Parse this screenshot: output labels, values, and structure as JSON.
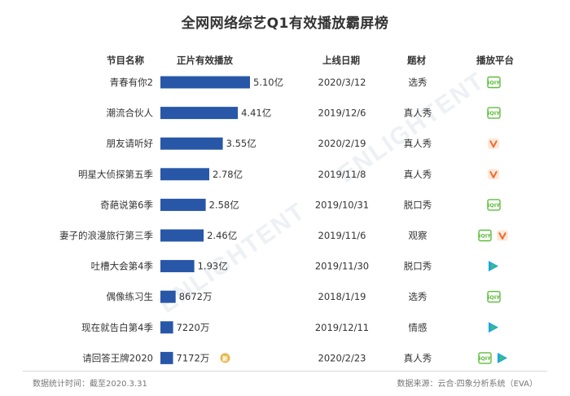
{
  "title": "全网网络综艺Q1有效播放霸屏榜",
  "headers": {
    "name": "节目名称",
    "plays": "正片有效播放",
    "date": "上线日期",
    "genre": "题材",
    "platform": "播放平台"
  },
  "chart_data": {
    "type": "bar",
    "orientation": "horizontal",
    "title": "全网网络综艺Q1有效播放霸屏榜",
    "xlabel": "正片有效播放",
    "ylabel": "节目名称",
    "unit": "万",
    "categories": [
      "青春有你2",
      "潮流合伙人",
      "朋友请听好",
      "明星大侦探第五季",
      "奇葩说第6季",
      "妻子的浪漫旅行第三季",
      "吐槽大会第4季",
      "偶像练习生",
      "现在就告白第4季",
      "请回答王牌2020"
    ],
    "values": [
      51000,
      44100,
      35500,
      27800,
      25800,
      24600,
      19300,
      8672,
      7220,
      7172
    ],
    "value_labels": [
      "5.10亿",
      "4.41亿",
      "3.55亿",
      "2.78亿",
      "2.58亿",
      "2.46亿",
      "1.93亿",
      "8672万",
      "7220万",
      "7172万"
    ],
    "dates": [
      "2020/3/12",
      "2019/12/6",
      "2020/2/19",
      "2019/11/8",
      "2019/10/31",
      "2019/11/6",
      "2019/11/30",
      "2018/1/19",
      "2019/12/11",
      "2020/2/23"
    ],
    "genres": [
      "选秀",
      "真人秀",
      "真人秀",
      "真人秀",
      "脱口秀",
      "观察",
      "脱口秀",
      "选秀",
      "情感",
      "真人秀"
    ],
    "platforms": [
      [
        "iqiyi"
      ],
      [
        "iqiyi"
      ],
      [
        "youku"
      ],
      [
        "youku"
      ],
      [
        "iqiyi"
      ],
      [
        "iqiyi",
        "youku"
      ],
      [
        "tencent"
      ],
      [
        "iqiyi"
      ],
      [
        "tencent"
      ],
      [
        "iqiyi",
        "tencent"
      ]
    ],
    "bar_color": "#2857a8",
    "grid": false
  },
  "new_badge": "新",
  "colors": {
    "bar": "#2857a8",
    "iqiyi": "#5dbd3c",
    "youku": "#ef6b26",
    "tencent_a": "#20a4e8",
    "tencent_b": "#3ac26b",
    "badge": "#e8b64a"
  },
  "icon_text": {
    "iqiyi": "iQIY"
  },
  "footer": {
    "left": "数据统计时间：截至2020.3.31",
    "right": "数据来源：云合·四象分析系统（EVA）"
  },
  "watermark": {
    "text": "ENLIGHTENT"
  }
}
